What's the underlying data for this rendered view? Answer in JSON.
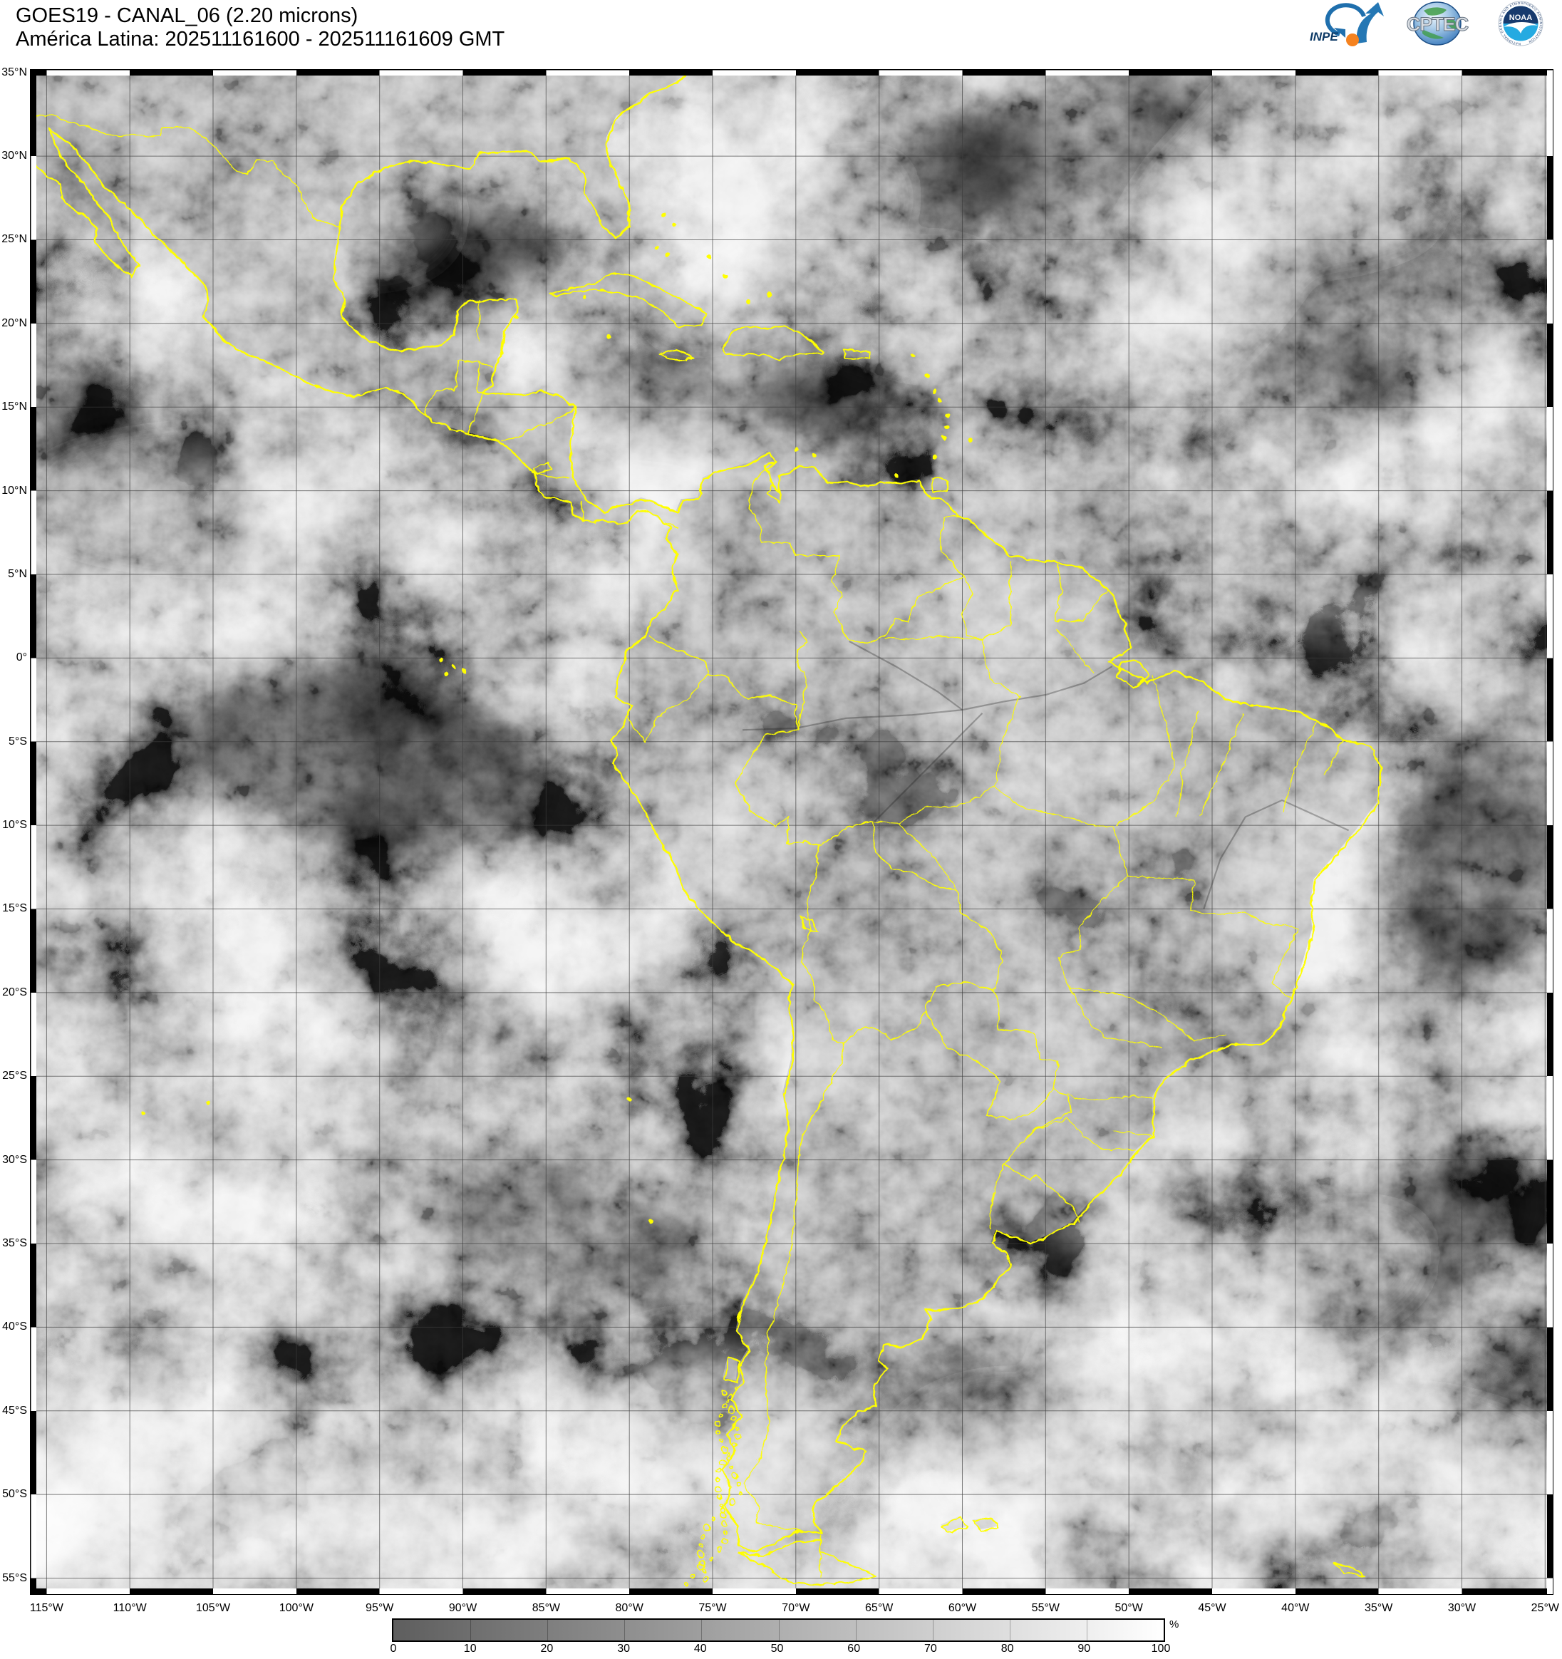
{
  "header": {
    "title_line1": "GOES19 - CANAL_06 (2.20 microns)",
    "title_line2": "América Latina: 202511161600 - 202511161609 GMT"
  },
  "logos": {
    "inpe_label": "INPE",
    "cptec_label": "CPTEC",
    "noaa_label": "NOAA",
    "noaa_ring_text": "NATIONAL OCEANIC AND ATMOSPHERIC ADMINISTRATION"
  },
  "map": {
    "lat_labels": [
      "35°N",
      "30°N",
      "25°N",
      "20°N",
      "15°N",
      "10°N",
      "5°N",
      "0°",
      "5°S",
      "10°S",
      "15°S",
      "20°S",
      "25°S",
      "30°S",
      "35°S",
      "40°S",
      "45°S",
      "50°S",
      "55°S"
    ],
    "lon_labels": [
      "115°W",
      "110°W",
      "105°W",
      "100°W",
      "95°W",
      "90°W",
      "85°W",
      "80°W",
      "75°W",
      "70°W",
      "65°W",
      "60°W",
      "55°W",
      "50°W",
      "45°W",
      "40°W",
      "35°W",
      "30°W",
      "25°W"
    ]
  },
  "colorbar": {
    "tick_labels": [
      "0",
      "10",
      "20",
      "30",
      "40",
      "50",
      "60",
      "70",
      "80",
      "90",
      "100"
    ],
    "unit": "%"
  }
}
